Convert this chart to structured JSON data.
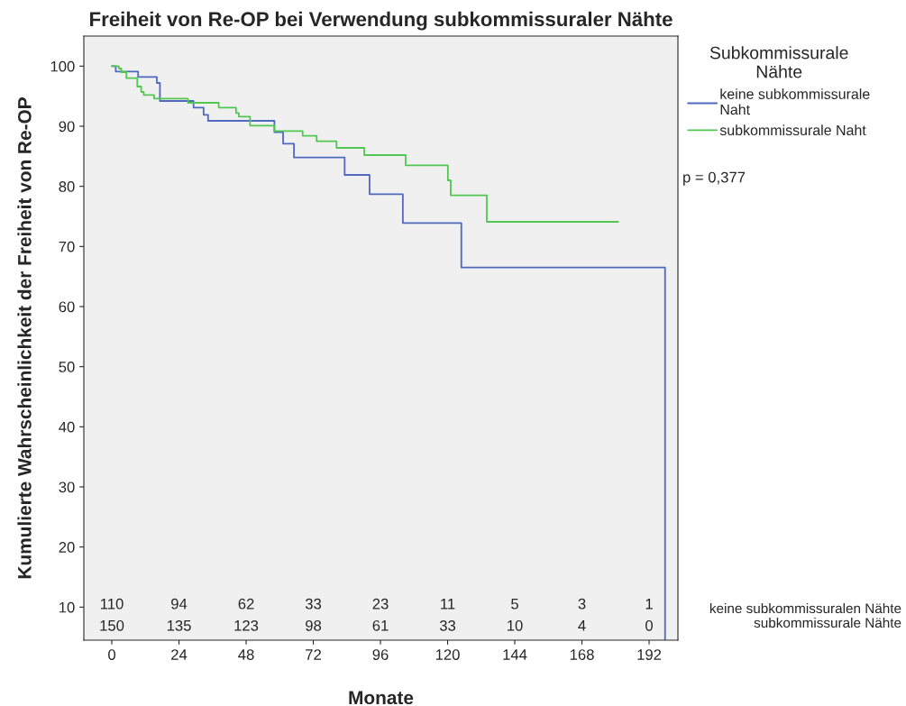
{
  "chart_data": {
    "type": "step",
    "title": "Freiheit von Re-OP bei Verwendung subkommissuraler Nähte",
    "xlabel": "Monate",
    "ylabel": "Kumulierte Wahrscheinlichkeit der Freiheit von Re-OP",
    "legend_title": "Subkommissurale\nNähte",
    "legend": "top right",
    "grid": false,
    "series": [
      {
        "name": "keine subkommissurale\nNaht",
        "color": "#5068c0",
        "x": [
          0,
          1.4,
          9.4,
          16.1,
          17.2,
          29.2,
          32.8,
          34.4,
          58.1,
          61.2,
          65.1,
          83.2,
          92.1,
          104,
          124.9,
          197.7,
          197.7
        ],
        "values": [
          100,
          99.1,
          98.2,
          97.2,
          94.2,
          93.1,
          91.9,
          90.9,
          89.0,
          87.1,
          84.8,
          81.9,
          78.7,
          73.9,
          66.5,
          66.5,
          4.5
        ]
      },
      {
        "name": "subkommissurale Naht",
        "color": "#50c850",
        "x": [
          0,
          2.5,
          3.4,
          5.2,
          9.1,
          10.5,
          11.4,
          15.1,
          27.2,
          38.2,
          44.4,
          45.4,
          49.4,
          58.1,
          68.2,
          73.2,
          80.3,
          90.2,
          105,
          120.1,
          121.1,
          134,
          180.9
        ],
        "values": [
          100,
          99.6,
          99.0,
          98.0,
          96.6,
          95.7,
          95.2,
          94.6,
          93.9,
          93.1,
          92.2,
          91.6,
          90.1,
          89.2,
          88.4,
          87.5,
          86.4,
          85.2,
          83.5,
          81.0,
          78.5,
          74.1,
          74.1
        ]
      }
    ],
    "xlim": [
      -10,
      202.3
    ],
    "ylim": [
      4.5,
      105
    ],
    "xticks": [
      0,
      24,
      48,
      72,
      96,
      120,
      144,
      168,
      192
    ],
    "yticks": [
      10,
      20,
      30,
      40,
      50,
      60,
      70,
      80,
      90,
      100
    ],
    "annotations": [
      "p = 0,377",
      "keine subkommissuralen Nähte",
      "subkommissurale Nähte",
      "110",
      "94",
      "62",
      "33",
      "23",
      "11",
      "5",
      "3",
      "1",
      "150",
      "135",
      "123",
      "98",
      "61",
      "33",
      "10",
      "4",
      "0"
    ]
  }
}
